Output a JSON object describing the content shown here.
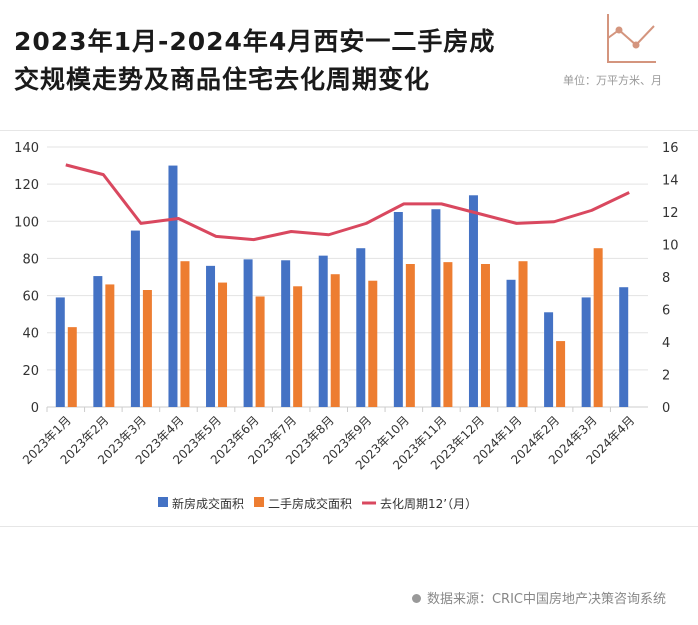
{
  "header": {
    "title_line1": "2023年1月-2024年4月西安一二手房成",
    "title_line2": "交规模走势及商品住宅去化周期变化",
    "unit": "单位：万平方米、月",
    "icon": "line-chart-icon"
  },
  "footer": {
    "source": "数据来源：CRIC中国房地产决策咨询系统"
  },
  "colors": {
    "new": "#4472C4",
    "second": "#ED7D31",
    "cycle": "#D9485F",
    "icon": "#D4957E"
  },
  "chart_data": {
    "type": "bar",
    "categories": [
      "2023年1月",
      "2023年2月",
      "2023年3月",
      "2023年4月",
      "2023年5月",
      "2023年6月",
      "2023年7月",
      "2023年8月",
      "2023年9月",
      "2023年10月",
      "2023年11月",
      "2023年12月",
      "2024年1月",
      "2024年2月",
      "2024年3月",
      "2024年4月"
    ],
    "series": [
      {
        "name": "新房成交面积",
        "type": "bar",
        "axis": "left",
        "values": [
          59,
          70.5,
          95,
          130,
          76,
          79.5,
          79,
          81.5,
          85.5,
          105,
          106.5,
          114,
          68.5,
          51,
          59,
          64.5
        ]
      },
      {
        "name": "二手房成交面积",
        "type": "bar",
        "axis": "left",
        "values": [
          43,
          66,
          63,
          78.5,
          67,
          59.5,
          65,
          71.5,
          68,
          77,
          78,
          77,
          78.5,
          35.5,
          85.5,
          null
        ]
      },
      {
        "name": "去化周期12’（月）",
        "type": "line",
        "axis": "right",
        "values": [
          14.9,
          14.3,
          11.3,
          11.6,
          10.5,
          10.3,
          10.8,
          10.6,
          11.3,
          12.5,
          12.5,
          11.9,
          11.3,
          11.4,
          12.1,
          13.2
        ]
      }
    ],
    "ylim_left": [
      0,
      140
    ],
    "yticks_left": [
      0,
      20,
      40,
      60,
      80,
      100,
      120,
      140
    ],
    "ylim_right": [
      0,
      16
    ],
    "yticks_right": [
      0,
      2,
      4,
      6,
      8,
      10,
      12,
      14,
      16
    ],
    "grid": true,
    "legend": "bottom"
  }
}
